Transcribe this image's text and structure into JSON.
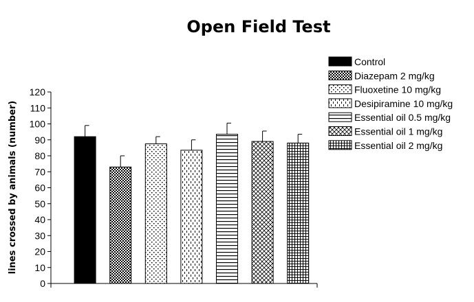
{
  "chart_data": {
    "type": "bar",
    "title": "Open Field Test",
    "xlabel": "",
    "ylabel": "lines crossed by animals (number)",
    "ylim": [
      0,
      120
    ],
    "yticks": [
      0,
      10,
      20,
      30,
      40,
      50,
      60,
      70,
      80,
      90,
      100,
      110,
      120
    ],
    "grid": false,
    "legend_position": "right",
    "categories": [
      "Control",
      "Diazepam 2 mg/kg",
      "Fluoxetine 10 mg/kg",
      "Desipiramine 10 mg/kg",
      "Essential oil 0.5 mg/kg",
      "Essential oil 1 mg/kg",
      "Essential oil 2 mg/kg"
    ],
    "values": [
      92,
      73,
      87.5,
      83.5,
      93.5,
      89,
      88
    ],
    "errors": [
      7,
      7,
      4.5,
      6.5,
      7,
      6.5,
      5.5
    ],
    "patterns": [
      "solid",
      "dense-dots",
      "sparse-dots",
      "dashed-vertical",
      "horizontal-lines",
      "crosshatch-diagonal",
      "grid"
    ],
    "colors": {
      "bar_fill": "#000000",
      "background": "#ffffff"
    }
  }
}
